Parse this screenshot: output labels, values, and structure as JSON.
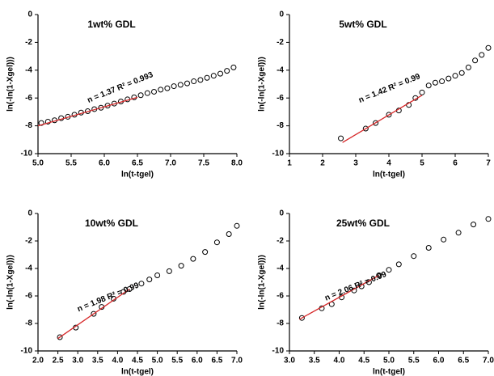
{
  "chart_data": [
    {
      "type": "scatter",
      "title": "1wt% GDL",
      "x_label": "ln(t-tgel)",
      "y_label": "ln(-ln(1-Xgel)))",
      "annotation": "n = 1.37 R² = 0.993",
      "xlim": [
        5.0,
        8.0
      ],
      "xticks": [
        {
          "value": 5,
          "label": "5.0"
        },
        {
          "value": 5.5,
          "label": "5.5"
        },
        {
          "value": 6,
          "label": "6.0"
        },
        {
          "value": 6.5,
          "label": "6.5"
        },
        {
          "value": 7,
          "label": "7.0"
        },
        {
          "value": 7.5,
          "label": "7.5"
        },
        {
          "value": 8,
          "label": "8.0"
        }
      ],
      "ylim": [
        -10,
        0
      ],
      "yticks": [
        -10,
        -8,
        -6,
        -4,
        -2,
        0
      ],
      "series": [
        {
          "color": "#000000",
          "marker": "circle",
          "x": [
            5.05,
            5.15,
            5.25,
            5.35,
            5.45,
            5.55,
            5.65,
            5.75,
            5.85,
            5.95,
            6.05,
            6.15,
            6.25,
            6.35,
            6.45,
            6.55,
            6.65,
            6.75,
            6.85,
            6.95,
            7.05,
            7.15,
            7.25,
            7.35,
            7.45,
            7.55,
            7.65,
            7.75,
            7.85,
            7.95
          ],
          "values": [
            -7.8,
            -7.7,
            -7.6,
            -7.45,
            -7.35,
            -7.2,
            -7.05,
            -6.95,
            -6.8,
            -6.7,
            -6.55,
            -6.4,
            -6.25,
            -6.1,
            -5.95,
            -5.8,
            -5.65,
            -5.55,
            -5.4,
            -5.3,
            -5.15,
            -5.05,
            -4.95,
            -4.8,
            -4.7,
            -4.55,
            -4.4,
            -4.25,
            -4.05,
            -3.8
          ]
        },
        {
          "color": "#d62728",
          "marker": "line",
          "x": [
            5.0,
            6.5
          ],
          "values": [
            -8.0,
            -5.95
          ]
        }
      ]
    },
    {
      "type": "scatter",
      "title": "5wt% GDL",
      "x_label": "ln(t-tgel)",
      "y_label": "ln(-ln(1-Xgel)))",
      "annotation": "n = 1.42 R² = 0.99",
      "xlim": [
        1,
        7
      ],
      "xticks": [
        1,
        2,
        3,
        4,
        5,
        6,
        7
      ],
      "ylim": [
        -10,
        0
      ],
      "yticks": [
        -10,
        -8,
        -6,
        -4,
        -2,
        0
      ],
      "series": [
        {
          "color": "#000000",
          "marker": "circle",
          "x": [
            2.55,
            3.3,
            3.6,
            4.0,
            4.3,
            4.6,
            4.8,
            5.0,
            5.2,
            5.4,
            5.6,
            5.8,
            6.0,
            6.2,
            6.4,
            6.6,
            6.8,
            7.0
          ],
          "values": [
            -8.9,
            -8.2,
            -7.8,
            -7.2,
            -6.9,
            -6.5,
            -6.0,
            -5.6,
            -5.1,
            -4.9,
            -4.8,
            -4.6,
            -4.4,
            -4.2,
            -3.8,
            -3.3,
            -2.9,
            -2.4
          ]
        },
        {
          "color": "#d62728",
          "marker": "line",
          "x": [
            2.6,
            5.0
          ],
          "values": [
            -9.2,
            -5.8
          ]
        }
      ]
    },
    {
      "type": "scatter",
      "title": "10wt% GDL",
      "x_label": "ln(t-tgel)",
      "y_label": "ln(-ln(1-Xgel)))",
      "annotation": "n = 1.98 R² = 0.99",
      "xlim": [
        2.0,
        7.0
      ],
      "xticks": [
        {
          "value": 2,
          "label": "2.0"
        },
        {
          "value": 2.5,
          "label": "2.5"
        },
        {
          "value": 3,
          "label": "3.0"
        },
        {
          "value": 3.5,
          "label": "3.5"
        },
        {
          "value": 4,
          "label": "4.0"
        },
        {
          "value": 4.5,
          "label": "4.5"
        },
        {
          "value": 5,
          "label": "5.0"
        },
        {
          "value": 5.5,
          "label": "5.5"
        },
        {
          "value": 6,
          "label": "6.0"
        },
        {
          "value": 6.5,
          "label": "6.5"
        },
        {
          "value": 7,
          "label": "7.0"
        }
      ],
      "ylim": [
        -10,
        0
      ],
      "yticks": [
        -10,
        -8,
        -6,
        -4,
        -2,
        0
      ],
      "series": [
        {
          "color": "#000000",
          "marker": "circle",
          "x": [
            2.55,
            2.95,
            3.4,
            3.6,
            3.9,
            4.15,
            4.3,
            4.6,
            4.8,
            5.0,
            5.3,
            5.6,
            5.9,
            6.2,
            6.5,
            6.8,
            7.0
          ],
          "values": [
            -9.0,
            -8.3,
            -7.3,
            -6.8,
            -6.2,
            -5.7,
            -5.5,
            -5.1,
            -4.8,
            -4.5,
            -4.2,
            -3.8,
            -3.3,
            -2.8,
            -2.1,
            -1.5,
            -0.9
          ]
        },
        {
          "color": "#d62728",
          "marker": "line",
          "x": [
            2.5,
            4.3
          ],
          "values": [
            -9.1,
            -5.5
          ]
        }
      ]
    },
    {
      "type": "scatter",
      "title": "25wt% GDL",
      "x_label": "ln(t-tgel)",
      "y_label": "ln(-ln(1-Xgel)))",
      "annotation": "n = 2.06 R² = 0.99",
      "xlim": [
        3.0,
        7.0
      ],
      "xticks": [
        {
          "value": 3,
          "label": "3.0"
        },
        {
          "value": 3.5,
          "label": "3.5"
        },
        {
          "value": 4,
          "label": "4.0"
        },
        {
          "value": 4.5,
          "label": "4.5"
        },
        {
          "value": 5,
          "label": "5.0"
        },
        {
          "value": 5.5,
          "label": "5.5"
        },
        {
          "value": 6,
          "label": "6.0"
        },
        {
          "value": 6.5,
          "label": "6.5"
        },
        {
          "value": 7,
          "label": "7.0"
        }
      ],
      "ylim": [
        -10,
        0
      ],
      "yticks": [
        -10,
        -8,
        -6,
        -4,
        -2,
        0
      ],
      "series": [
        {
          "color": "#000000",
          "marker": "circle",
          "x": [
            3.25,
            3.65,
            3.85,
            4.05,
            4.3,
            4.45,
            4.6,
            4.8,
            5.0,
            5.2,
            5.5,
            5.8,
            6.1,
            6.4,
            6.7,
            7.0
          ],
          "values": [
            -7.6,
            -6.9,
            -6.6,
            -6.1,
            -5.6,
            -5.3,
            -5.0,
            -4.5,
            -4.1,
            -3.7,
            -3.1,
            -2.5,
            -1.9,
            -1.4,
            -0.8,
            -0.4
          ]
        },
        {
          "color": "#d62728",
          "marker": "line",
          "x": [
            3.2,
            4.8
          ],
          "values": [
            -7.7,
            -4.5
          ]
        }
      ]
    }
  ]
}
